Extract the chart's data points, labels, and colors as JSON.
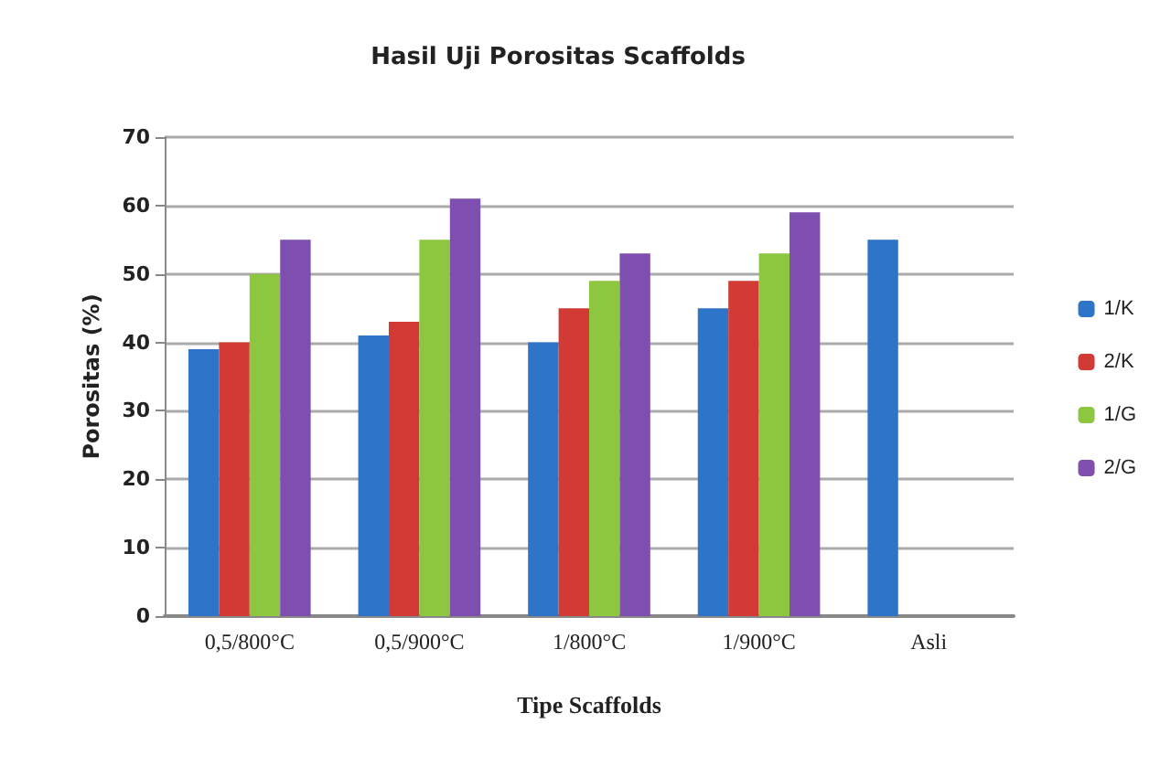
{
  "chart_data": {
    "type": "bar",
    "title": "Hasil Uji Porositas Scaffolds",
    "xlabel": "Tipe Scaffolds",
    "ylabel": "Porositas (%)",
    "categories": [
      "0,5/800°C",
      "0,5/900°C",
      "1/800°C",
      "1/900°C",
      "Asli"
    ],
    "series": [
      {
        "name": "1/K",
        "color": "#2e75c9",
        "values": [
          39,
          41,
          40,
          45,
          55
        ]
      },
      {
        "name": "2/K",
        "color": "#d23a35",
        "values": [
          40,
          43,
          45,
          49,
          null
        ]
      },
      {
        "name": "1/G",
        "color": "#8dc63f",
        "values": [
          50,
          55,
          49,
          53,
          null
        ]
      },
      {
        "name": "2/G",
        "color": "#7f4fb0",
        "values": [
          55,
          61,
          53,
          59,
          null
        ]
      }
    ],
    "ylim": [
      0,
      70
    ],
    "yticks": [
      0,
      10,
      20,
      30,
      40,
      50,
      60,
      70
    ],
    "grid": "y",
    "legend": "right"
  }
}
